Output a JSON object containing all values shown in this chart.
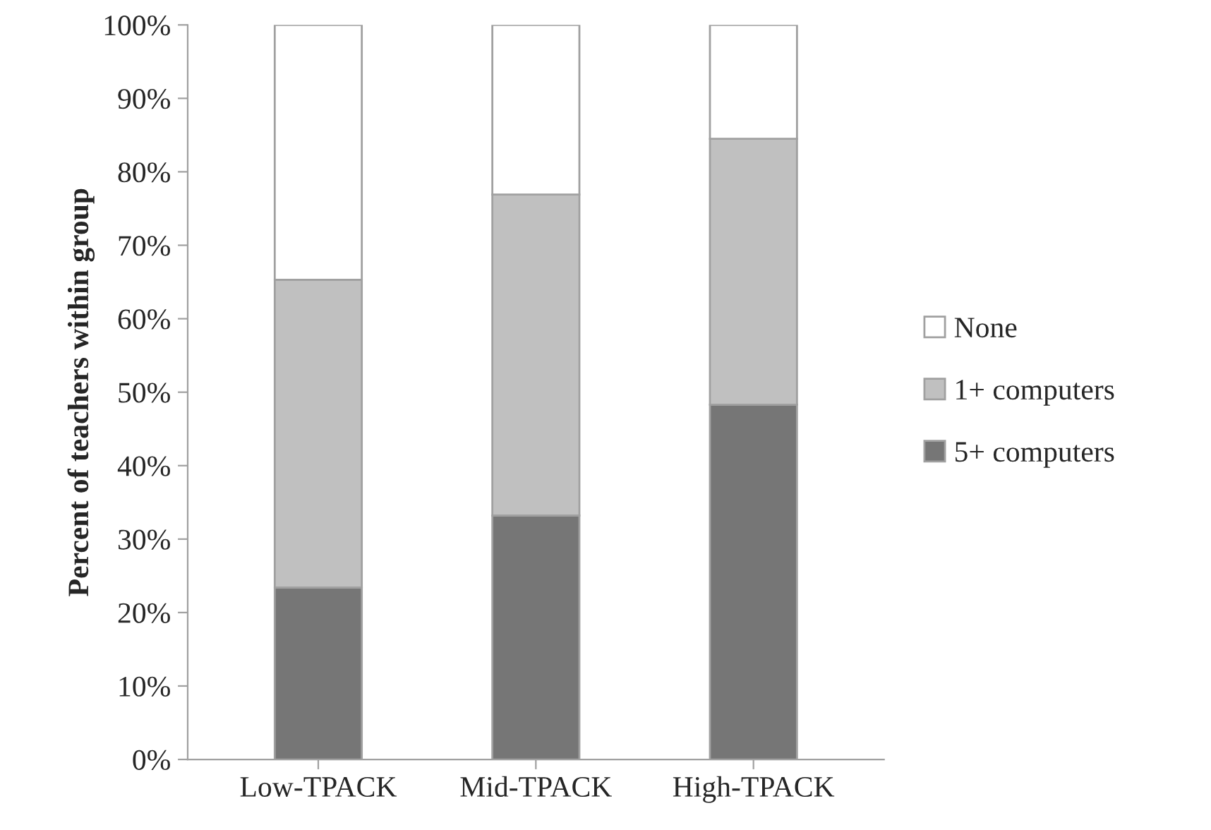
{
  "chart_data": {
    "type": "bar",
    "stacked": true,
    "ylabel": "Percent of teachers within group",
    "categories": [
      "Low-TPACK",
      "Mid-TPACK",
      "High-TPACK"
    ],
    "series": [
      {
        "name": "5+ computers",
        "color": "#767676",
        "values": [
          23.4,
          33.2,
          48.3
        ]
      },
      {
        "name": "1+ computers",
        "color": "#c0c0c0",
        "values": [
          41.9,
          43.7,
          36.2
        ]
      },
      {
        "name": "None",
        "color": "#ffffff",
        "values": [
          34.7,
          23.1,
          15.5
        ]
      }
    ],
    "ylim": [
      0,
      100
    ],
    "yticks": [
      {
        "value": 0,
        "label": "0%"
      },
      {
        "value": 10,
        "label": "10%"
      },
      {
        "value": 20,
        "label": "20%"
      },
      {
        "value": 30,
        "label": "30%"
      },
      {
        "value": 40,
        "label": "40%"
      },
      {
        "value": 50,
        "label": "50%"
      },
      {
        "value": 60,
        "label": "60%"
      },
      {
        "value": 70,
        "label": "70%"
      },
      {
        "value": 80,
        "label": "80%"
      },
      {
        "value": 90,
        "label": "90%"
      },
      {
        "value": 100,
        "label": "100%"
      }
    ],
    "grid": false,
    "legend": "right"
  }
}
